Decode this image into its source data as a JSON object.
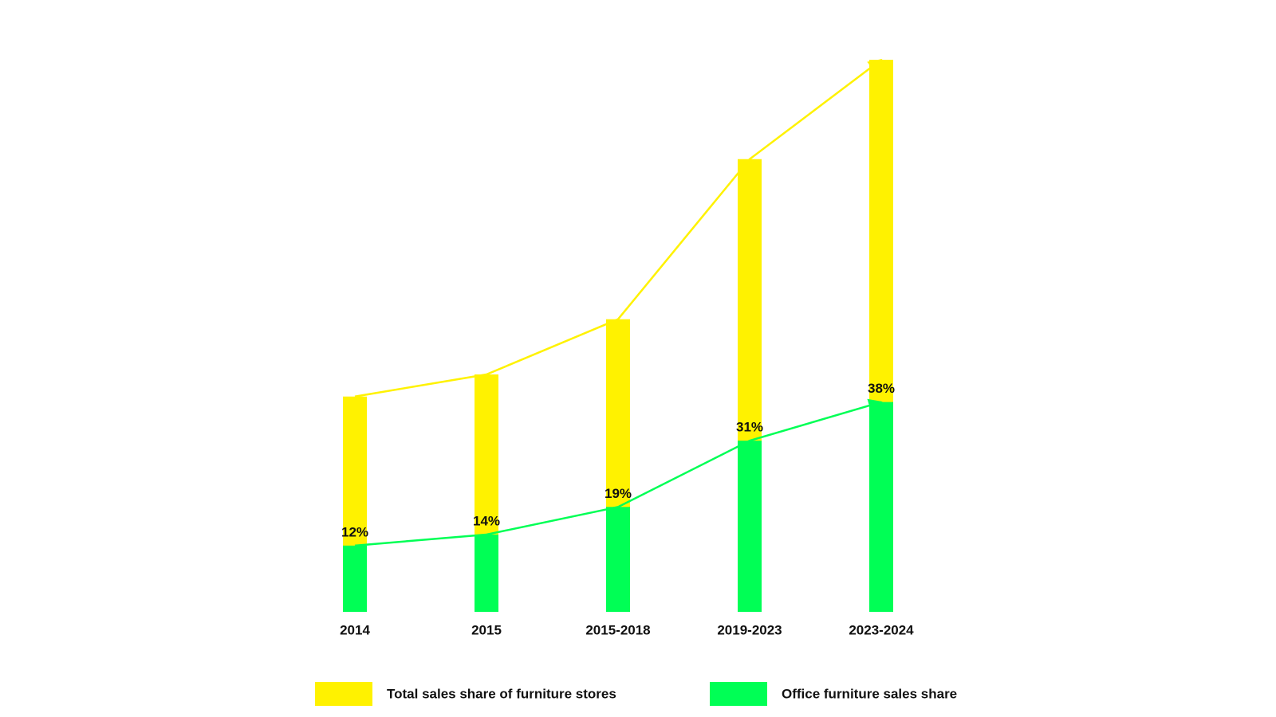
{
  "chart_data": {
    "type": "bar",
    "categories": [
      "2014",
      "2015",
      "2015-2018",
      "2019-2023",
      "2023-2024"
    ],
    "series": [
      {
        "name": "Total sales share of furniture stores",
        "color": "#fff200",
        "values": [
          39,
          43,
          53,
          82,
          100
        ]
      },
      {
        "name": "Office furniture sales share",
        "color": "#00ff55",
        "values": [
          12,
          14,
          19,
          31,
          38
        ],
        "value_labels": [
          "12%",
          "14%",
          "19%",
          "31%",
          "38%"
        ]
      }
    ]
  }
}
